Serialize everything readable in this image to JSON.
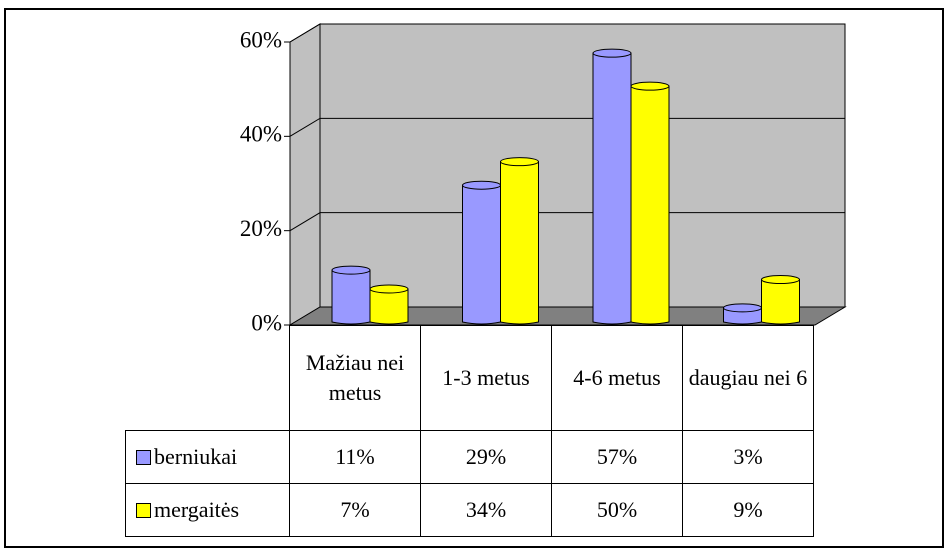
{
  "chart_data": {
    "type": "bar3d",
    "categories": [
      "Mažiau nei metus",
      "1-3 metus",
      "4-6 metus",
      "daugiau nei 6"
    ],
    "series": [
      {
        "name": "berniukai",
        "color": "#9999ff",
        "values": [
          11,
          29,
          57,
          3
        ],
        "value_labels": [
          "11%",
          "29%",
          "57%",
          "3%"
        ]
      },
      {
        "name": "mergaitės",
        "color": "#ffff00",
        "values": [
          7,
          34,
          50,
          9
        ],
        "value_labels": [
          "7%",
          "34%",
          "50%",
          "9%"
        ]
      }
    ],
    "ylim": [
      0,
      60
    ],
    "yticks": [
      {
        "value": 0,
        "label": "0%"
      },
      {
        "value": 20,
        "label": "20%"
      },
      {
        "value": 40,
        "label": "40%"
      },
      {
        "value": 60,
        "label": "60%"
      }
    ],
    "grid": true
  }
}
